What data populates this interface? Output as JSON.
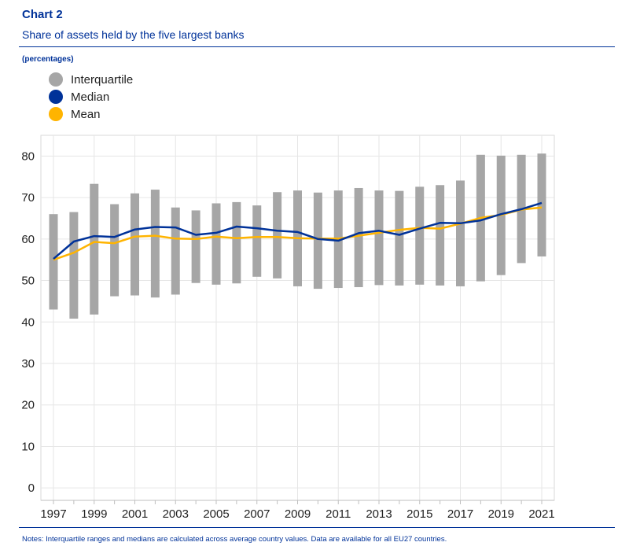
{
  "header": {
    "chart_number": "Chart 2",
    "title": "Share of assets held by the five largest banks",
    "units": "(percentages)"
  },
  "legend": [
    {
      "label": "Interquartile",
      "color": "#a6a6a6"
    },
    {
      "label": "Median",
      "color": "#003299"
    },
    {
      "label": "Mean",
      "color": "#ffb400"
    }
  ],
  "notes": "Notes: Interquartile ranges and medians are calculated across average country values. Data are available for all EU27 countries.",
  "chart_data": {
    "type": "line",
    "title": "Share of assets held by the five largest banks",
    "ylabel": "(percentages)",
    "ylim": [
      -3,
      85
    ],
    "yticks": [
      0,
      10,
      20,
      30,
      40,
      50,
      60,
      70,
      80
    ],
    "x": [
      1997,
      1998,
      1999,
      2000,
      2001,
      2002,
      2003,
      2004,
      2005,
      2006,
      2007,
      2008,
      2009,
      2010,
      2011,
      2012,
      2013,
      2014,
      2015,
      2016,
      2017,
      2018,
      2019,
      2020,
      2021
    ],
    "xtick_labels": [
      "1997",
      "1999",
      "2001",
      "2003",
      "2005",
      "2007",
      "2009",
      "2011",
      "2013",
      "2015",
      "2017",
      "2019",
      "2021"
    ],
    "grid": true,
    "series": [
      {
        "name": "Interquartile",
        "type": "range",
        "low": [
          43.0,
          40.8,
          41.8,
          46.2,
          46.4,
          45.9,
          46.6,
          49.4,
          49.0,
          49.3,
          50.9,
          50.5,
          48.6,
          48.0,
          48.2,
          48.4,
          48.9,
          48.8,
          49.0,
          48.8,
          48.6,
          49.8,
          51.3,
          54.2,
          55.8
        ],
        "high": [
          66.0,
          66.5,
          73.3,
          68.4,
          71.0,
          71.9,
          67.6,
          66.9,
          68.6,
          68.9,
          68.1,
          71.3,
          71.7,
          71.2,
          71.7,
          72.3,
          71.7,
          71.6,
          72.6,
          73.0,
          74.1,
          80.3,
          80.1,
          80.3,
          80.6
        ]
      },
      {
        "name": "Median",
        "type": "line",
        "values": [
          55.2,
          59.4,
          60.7,
          60.5,
          62.3,
          62.9,
          62.8,
          61.0,
          61.5,
          63.0,
          62.6,
          62.0,
          61.7,
          60.0,
          59.6,
          61.4,
          62.0,
          61.0,
          62.5,
          63.9,
          63.8,
          64.5,
          66.0,
          67.2,
          68.7
        ]
      },
      {
        "name": "Mean",
        "type": "line",
        "values": [
          55.0,
          56.7,
          59.3,
          59.0,
          60.6,
          60.8,
          60.1,
          60.0,
          60.6,
          60.2,
          60.5,
          60.5,
          60.2,
          60.1,
          60.1,
          60.8,
          61.5,
          62.2,
          62.7,
          62.5,
          63.7,
          65.1,
          65.8,
          67.1,
          67.6
        ]
      }
    ]
  }
}
